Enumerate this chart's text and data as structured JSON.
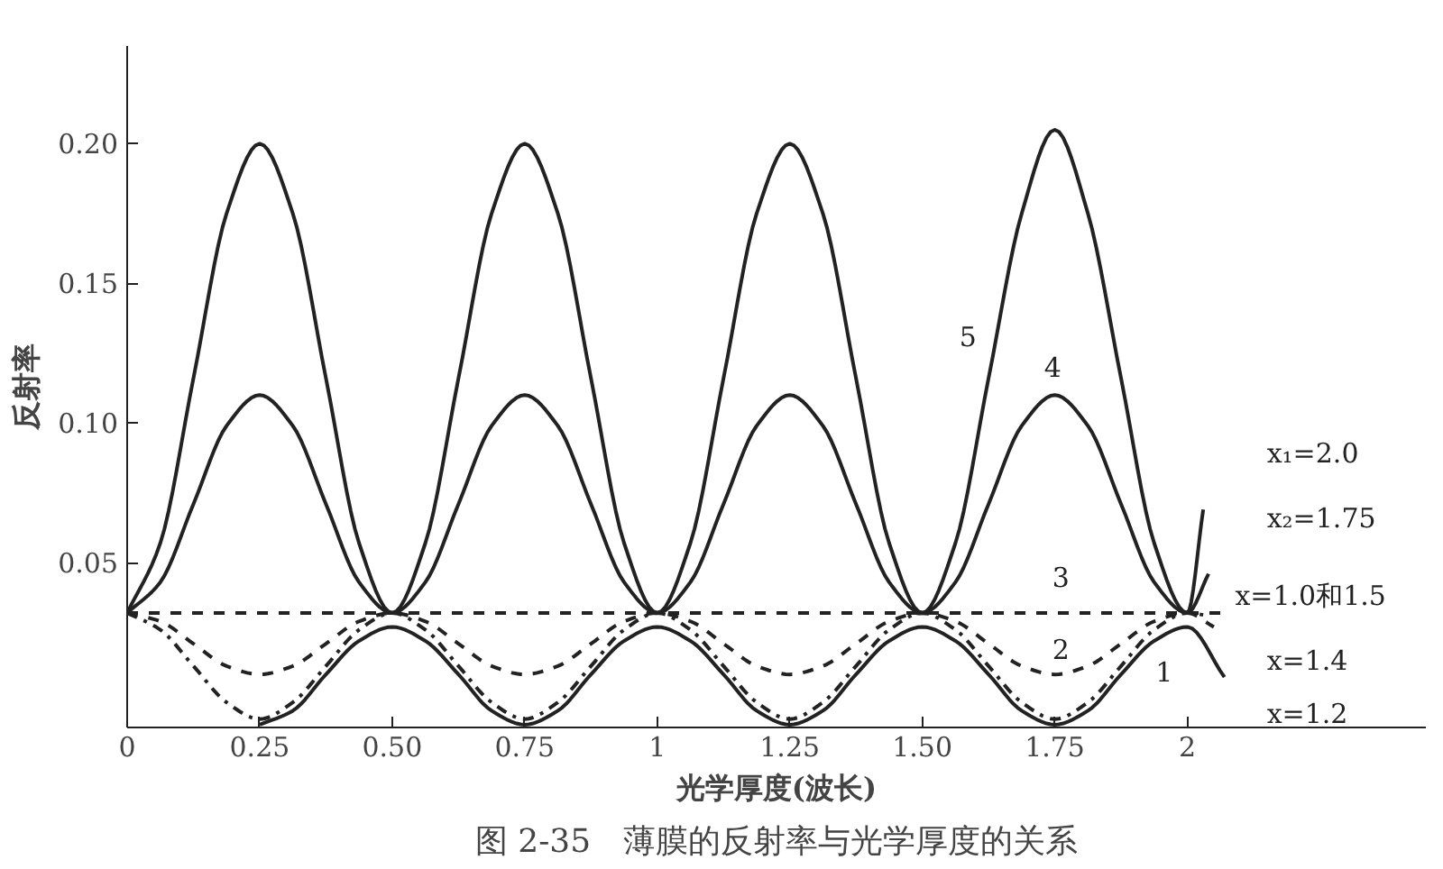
{
  "chart_data": {
    "type": "line",
    "title": "图 2-35　薄膜的反射率与光学厚度的关系",
    "xlabel": "光学厚度(波长)",
    "ylabel": "反射率",
    "xlim": [
      0,
      2.45
    ],
    "ylim": [
      -0.009,
      0.235
    ],
    "xticks": [
      0,
      0.25,
      {
        "value": 0.5,
        "label": "0.50"
      },
      0.75,
      1,
      1.25,
      {
        "value": 1.5,
        "label": "1.50"
      },
      1.75,
      2
    ],
    "yticks": [
      0.05,
      {
        "value": 0.1,
        "label": "0.10"
      },
      0.15,
      {
        "value": 0.2,
        "label": "0.20"
      }
    ],
    "grid": false,
    "marker": "none",
    "series": [
      {
        "color": "#222222",
        "line_style": "solid",
        "x": [
          0,
          0.0625,
          0.125,
          0.1875,
          0.25,
          0.3125,
          0.375,
          0.4375,
          0.5,
          0.5625,
          0.625,
          0.6875,
          0.75,
          0.8125,
          0.875,
          0.9375,
          1,
          1.0625,
          1.125,
          1.1875,
          1.25,
          1.3125,
          1.375,
          1.4375,
          1.5,
          1.5625,
          1.625,
          1.6875,
          1.75,
          1.8125,
          1.875,
          1.9375,
          2,
          2.03
        ],
        "values": [
          0.032,
          0.057,
          0.116,
          0.175,
          0.2,
          0.175,
          0.116,
          0.057,
          0.032,
          0.057,
          0.116,
          0.175,
          0.2,
          0.175,
          0.116,
          0.057,
          0.032,
          0.057,
          0.116,
          0.175,
          0.2,
          0.175,
          0.116,
          0.057,
          0.032,
          0.057,
          0.116,
          0.175,
          0.205,
          0.175,
          0.116,
          0.057,
          0.032,
          0.069
        ]
      },
      {
        "color": "#222222",
        "line_style": "solid",
        "x": [
          0,
          0.0625,
          0.125,
          0.1875,
          0.25,
          0.3125,
          0.375,
          0.4375,
          0.5,
          0.5625,
          0.625,
          0.6875,
          0.75,
          0.8125,
          0.875,
          0.9375,
          1,
          1.0625,
          1.125,
          1.1875,
          1.25,
          1.3125,
          1.375,
          1.4375,
          1.5,
          1.5625,
          1.625,
          1.6875,
          1.75,
          1.8125,
          1.875,
          1.9375,
          2,
          2.04
        ],
        "values": [
          0.032,
          0.043,
          0.071,
          0.099,
          0.11,
          0.099,
          0.071,
          0.043,
          0.032,
          0.043,
          0.071,
          0.099,
          0.11,
          0.099,
          0.071,
          0.043,
          0.032,
          0.043,
          0.071,
          0.099,
          0.11,
          0.099,
          0.071,
          0.043,
          0.032,
          0.043,
          0.071,
          0.099,
          0.11,
          0.099,
          0.071,
          0.043,
          0.032,
          0.046
        ]
      },
      {
        "color": "#222222",
        "line_style": "dashed",
        "x": [
          0,
          2.07
        ],
        "values": [
          0.032,
          0.032
        ]
      },
      {
        "color": "#222222",
        "line_style": "dashed",
        "x": [
          0,
          0.0625,
          0.125,
          0.1875,
          0.25,
          0.3125,
          0.375,
          0.4375,
          0.5,
          0.5625,
          0.625,
          0.6875,
          0.75,
          0.8125,
          0.875,
          0.9375,
          1,
          1.0625,
          1.125,
          1.1875,
          1.25,
          1.3125,
          1.375,
          1.4375,
          1.5,
          1.5625,
          1.625,
          1.6875,
          1.75,
          1.8125,
          1.875,
          1.9375,
          2,
          2.05
        ],
        "values": [
          0.032,
          0.029,
          0.021,
          0.013,
          0.01,
          0.013,
          0.021,
          0.029,
          0.032,
          0.029,
          0.021,
          0.013,
          0.01,
          0.013,
          0.021,
          0.029,
          0.032,
          0.029,
          0.021,
          0.013,
          0.01,
          0.013,
          0.021,
          0.029,
          0.032,
          0.029,
          0.021,
          0.013,
          0.01,
          0.013,
          0.021,
          0.029,
          0.032,
          0.027
        ]
      },
      {
        "color": "#222222",
        "line_style": "dashdot",
        "x": [
          0,
          0.0625,
          0.125,
          0.1875,
          0.25,
          0.3125,
          0.375,
          0.4375,
          0.5,
          0.5625,
          0.625,
          0.6875,
          0.75,
          0.8125,
          0.875,
          0.9375,
          1,
          1.0625,
          1.125,
          1.1875,
          1.25,
          1.3125,
          1.375,
          1.4375,
          1.5,
          1.5625,
          1.625,
          1.6875,
          1.75,
          1.8125,
          1.875,
          1.9375,
          2,
          2.04
        ],
        "values": [
          0.032,
          0.026,
          0.013,
          0.0,
          -0.006,
          0.0,
          0.013,
          0.026,
          0.032,
          0.026,
          0.013,
          0.0,
          -0.006,
          0.0,
          0.013,
          0.026,
          0.032,
          0.026,
          0.013,
          0.0,
          -0.006,
          0.0,
          0.013,
          0.026,
          0.032,
          0.026,
          0.013,
          0.0,
          -0.006,
          0.0,
          0.013,
          0.026,
          0.032,
          0.031
        ]
      },
      {
        "color": "#222222",
        "line_style": "solid",
        "x": [
          0.25,
          0.3125,
          0.375,
          0.4375,
          0.5,
          0.5625,
          0.625,
          0.6875,
          0.75,
          0.8125,
          0.875,
          0.9375,
          1,
          1.0625,
          1.125,
          1.1875,
          1.25,
          1.3125,
          1.375,
          1.4375,
          1.5,
          1.5625,
          1.625,
          1.6875,
          1.75,
          1.8125,
          1.875,
          1.9375,
          2,
          2.07
        ],
        "values": [
          -0.008,
          -0.003,
          0.01,
          0.022,
          0.027,
          0.022,
          0.01,
          -0.003,
          -0.008,
          -0.003,
          0.01,
          0.022,
          0.027,
          0.022,
          0.01,
          -0.003,
          -0.008,
          -0.003,
          0.01,
          0.022,
          0.027,
          0.022,
          0.01,
          -0.003,
          -0.008,
          -0.003,
          0.01,
          0.022,
          0.027,
          0.009
        ]
      }
    ],
    "annotations": [
      "5",
      "4",
      "3",
      "2",
      "1",
      "x₁=2.0",
      "x₂=1.75",
      "x=1.0和1.5",
      "x=1.4",
      "x=1.2"
    ]
  }
}
